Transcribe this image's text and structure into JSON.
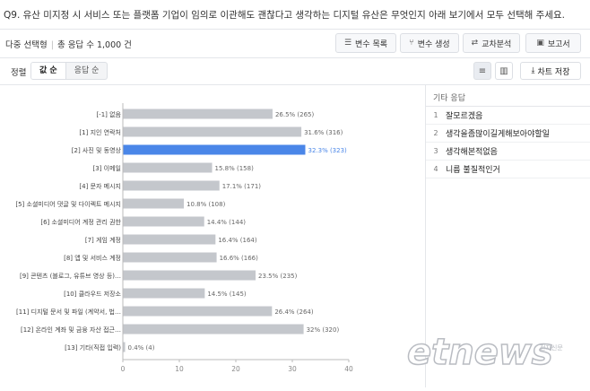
{
  "question": "Q9. 유산 미지정 시 서비스 또는 플랫폼 기업이 임의로 이관해도 괜찮다고 생각하는 디지털 유산은 무엇인지 아래 보기에서 모두 선택해 주세요.",
  "meta": {
    "type": "다중 선택형",
    "total": "총 응답 수 1,000 건"
  },
  "toolbar": {
    "var_list": "변수 목록",
    "var_create": "변수 생성",
    "cross": "교차분석",
    "report": "보고서"
  },
  "sort": {
    "label": "정렬",
    "by_value": "값 순",
    "by_response": "응답 순"
  },
  "save_chart": "차트 저장",
  "other_panel": {
    "title": "기타 응답",
    "items": [
      {
        "no": "1",
        "text": "잘모르겠음"
      },
      {
        "no": "2",
        "text": "생각을좀많이길게해보아야할일"
      },
      {
        "no": "3",
        "text": "생각해본적없음"
      },
      {
        "no": "4",
        "text": "니름 불질적인거"
      }
    ]
  },
  "colors": {
    "bar": "#c4c7cc",
    "highlight": "#4a86e8",
    "axis": "#888888"
  },
  "watermark": {
    "brand": "etnews",
    "sub": "전자신문"
  },
  "chart_data": {
    "type": "bar",
    "orientation": "horizontal",
    "categories": [
      "[-1] 없음",
      "[1] 지인 연락처",
      "[2] 사진 및 동영상",
      "[3] 이메일",
      "[4] 문자 메시지",
      "[5] 소셜미디어 댓글 및 다이렉트 메시지",
      "[6] 소셜미디어 계정 관리 권한",
      "[7] 게임 계정",
      "[8] 앱 및 서비스 계정",
      "[9] 콘텐츠 (블로그, 유튜브 영상 등)…",
      "[10] 클라우드 저장소",
      "[11] 디지털 문서 및 파일 (계약서, 법…",
      "[12] 온라인 계좌 및 금융 자산 접근…",
      "[13] 기타(직접 입력)"
    ],
    "values": [
      26.5,
      31.6,
      32.3,
      15.8,
      17.1,
      10.8,
      14.4,
      16.4,
      16.6,
      23.5,
      14.5,
      26.4,
      32,
      0.4
    ],
    "labels": [
      "26.5% (265)",
      "31.6% (316)",
      "32.3% (323)",
      "15.8% (158)",
      "17.1% (171)",
      "10.8% (108)",
      "14.4% (144)",
      "16.4% (164)",
      "16.6% (166)",
      "23.5% (235)",
      "14.5% (145)",
      "26.4% (264)",
      "32% (320)",
      "0.4% (4)"
    ],
    "highlight_index": 2,
    "xlim": [
      0,
      40
    ],
    "xticks": [
      "0",
      "10",
      "20",
      "30",
      "40"
    ],
    "grid": false
  }
}
